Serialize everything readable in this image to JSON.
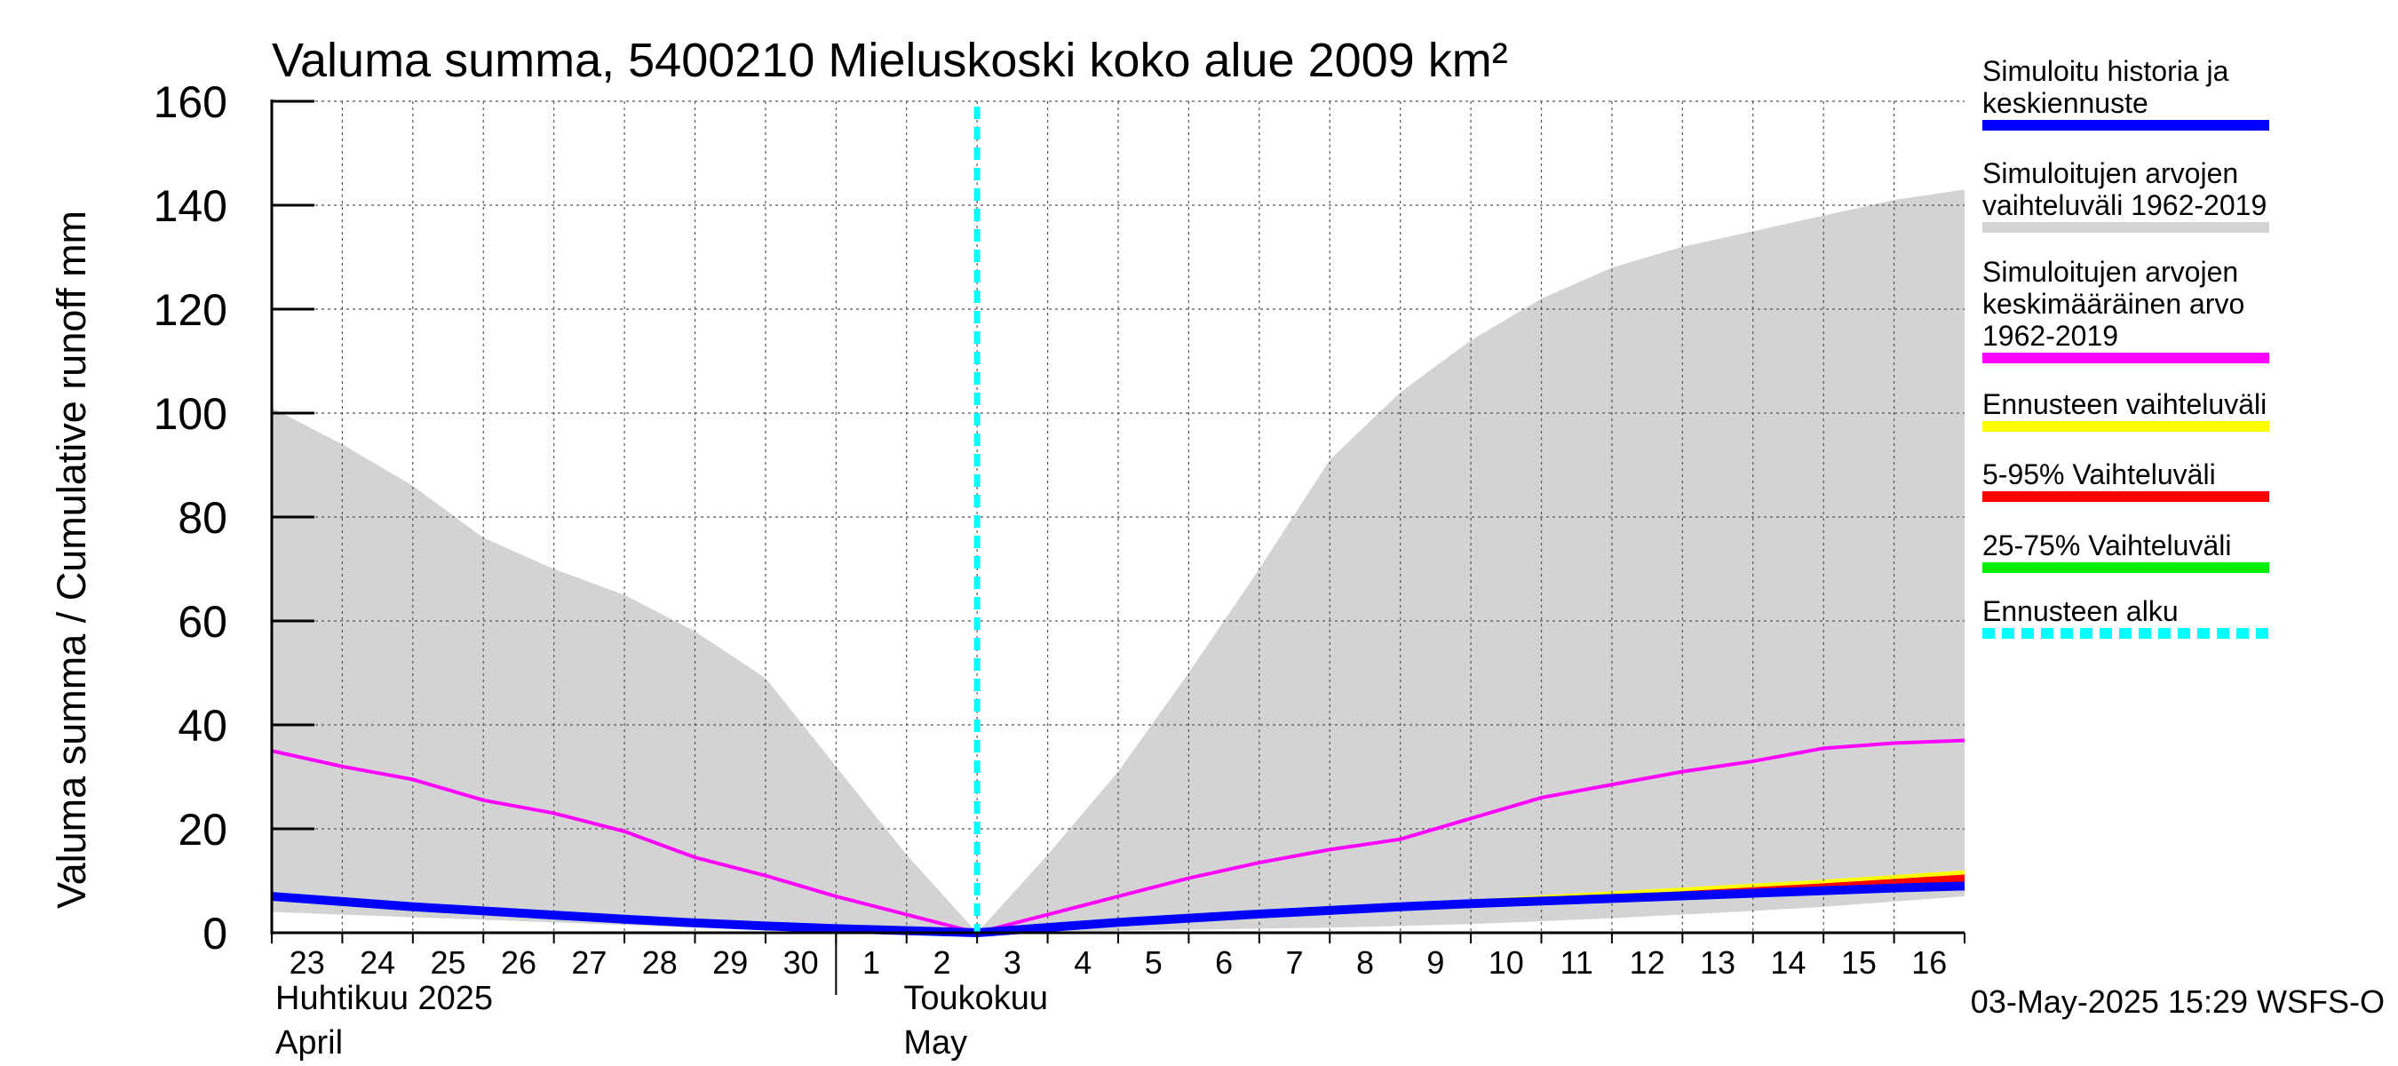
{
  "chart_data": {
    "type": "area",
    "title": "Valuma summa, 5400210 Mieluskoski koko alue 2009 km²",
    "ylabel": "Valuma summa / Cumulative runoff    mm",
    "ylim": [
      0,
      160
    ],
    "yticks": [
      0,
      20,
      40,
      60,
      80,
      100,
      120,
      140,
      160
    ],
    "x_days": [
      0,
      1,
      2,
      3,
      4,
      5,
      6,
      7,
      8,
      9,
      10,
      11,
      12,
      13,
      14,
      15,
      16,
      17,
      18,
      19,
      20,
      21,
      22,
      23,
      24
    ],
    "x_tick_labels": [
      "23",
      "24",
      "25",
      "26",
      "27",
      "28",
      "29",
      "30",
      "1",
      "2",
      "3",
      "4",
      "5",
      "6",
      "7",
      "8",
      "9",
      "10",
      "11",
      "12",
      "13",
      "14",
      "15",
      "16"
    ],
    "month_labels": [
      {
        "fi": "Huhtikuu  2025",
        "en": "April"
      },
      {
        "fi": "Toukokuu",
        "en": "May"
      }
    ],
    "forecast_start_day": 10,
    "series": [
      {
        "name": "Simuloitujen arvojen vaihteluväli 1962-2019 (ylä)",
        "role": "range_upper",
        "x": [
          0,
          1,
          2,
          3,
          4,
          5,
          6,
          7,
          8,
          9,
          10,
          11,
          12,
          13,
          14,
          15,
          16,
          17,
          18,
          19,
          20,
          21,
          22,
          23,
          24
        ],
        "values": [
          101,
          94,
          86,
          76,
          70,
          65,
          58,
          49,
          32,
          15,
          0,
          15,
          31,
          50,
          70,
          91,
          104,
          114,
          122,
          128,
          132,
          135,
          138,
          141,
          143
        ]
      },
      {
        "name": "Simuloitujen arvojen vaihteluväli 1962-2019 (ala)",
        "role": "range_lower",
        "x": [
          0,
          1,
          2,
          3,
          4,
          5,
          6,
          7,
          8,
          9,
          10,
          11,
          12,
          13,
          14,
          15,
          16,
          17,
          18,
          19,
          20,
          21,
          22,
          23,
          24
        ],
        "values": [
          4,
          3.5,
          3,
          2.5,
          2,
          1.5,
          1,
          0.7,
          0.4,
          0.2,
          0,
          0.2,
          0.4,
          0.6,
          0.8,
          1,
          1.3,
          1.7,
          2.2,
          2.8,
          3.5,
          4.2,
          5,
          6,
          7
        ]
      },
      {
        "name": "Simuloitujen arvojen keskimääräinen arvo 1962-2019",
        "role": "mean",
        "x": [
          0,
          1,
          2,
          3,
          4,
          5,
          6,
          7,
          8,
          9,
          10,
          11,
          12,
          13,
          14,
          15,
          16,
          17,
          18,
          19,
          20,
          21,
          22,
          23,
          24
        ],
        "values": [
          35,
          32,
          29.5,
          25.5,
          23,
          19.5,
          14.5,
          11,
          7,
          3.5,
          0,
          3.5,
          7,
          10.5,
          13.5,
          16,
          18,
          22,
          26,
          28.5,
          31,
          33,
          35.5,
          36.5,
          37
        ]
      },
      {
        "name": "Ennusteen vaihteluväli (ylä)",
        "role": "forecast_upper",
        "x": [
          10,
          12,
          14,
          16,
          18,
          20,
          22,
          24
        ],
        "values": [
          0,
          2,
          3.7,
          5.5,
          7.2,
          8.7,
          10.2,
          12
        ]
      },
      {
        "name": "5-95% Vaihteluväli (ylä)",
        "role": "p95",
        "x": [
          10,
          12,
          14,
          16,
          18,
          20,
          22,
          24
        ],
        "values": [
          0,
          1.8,
          3.4,
          5,
          6.6,
          8,
          9.5,
          11.2
        ]
      },
      {
        "name": "25-75% Vaihteluväli (ylä)",
        "role": "p75",
        "x": [
          10,
          12,
          14,
          16,
          18,
          20,
          22,
          24
        ],
        "values": [
          0,
          1.6,
          3.1,
          4.6,
          6,
          7.3,
          8.6,
          9.8
        ]
      },
      {
        "name": "Simuloitu historia ja keskiennuste",
        "role": "median",
        "x": [
          0,
          1,
          2,
          3,
          4,
          5,
          6,
          7,
          8,
          9,
          10,
          11,
          12,
          13,
          14,
          15,
          16,
          17,
          18,
          19,
          20,
          21,
          22,
          23,
          24
        ],
        "values": [
          7,
          6,
          5,
          4.2,
          3.4,
          2.6,
          1.9,
          1.3,
          0.8,
          0.4,
          0,
          1,
          2,
          2.8,
          3.6,
          4.3,
          5,
          5.6,
          6.1,
          6.6,
          7.1,
          7.6,
          8.1,
          8.6,
          9
        ]
      }
    ],
    "legend": [
      {
        "label": "Simuloitu historia ja\nkeskiennuste",
        "color": "#0000ff",
        "style": "solid"
      },
      {
        "label": "Simuloitujen arvojen\nvaihteluväli 1962-2019",
        "color": "#d3d3d3",
        "style": "solid"
      },
      {
        "label": "Simuloitujen arvojen\nkeskimääräinen arvo\n   1962-2019",
        "color": "#ff00ff",
        "style": "solid"
      },
      {
        "label": "Ennusteen vaihteluväli",
        "color": "#ffff00",
        "style": "solid"
      },
      {
        "label": "5-95% Vaihteluväli",
        "color": "#ff0000",
        "style": "solid"
      },
      {
        "label": "25-75% Vaihteluväli",
        "color": "#00ee00",
        "style": "solid"
      },
      {
        "label": "Ennusteen alku",
        "color": "#00ffff",
        "style": "dashed"
      }
    ],
    "legend_position": "right",
    "footer": "03-May-2025 15:29 WSFS-O",
    "colors": {
      "range": "#d3d3d3",
      "mean": "#ff00ff",
      "forecast": "#ffff00",
      "p95": "#ff0000",
      "p75": "#00ee00",
      "median": "#0000ff",
      "forecast_start": "#00ffff"
    }
  }
}
